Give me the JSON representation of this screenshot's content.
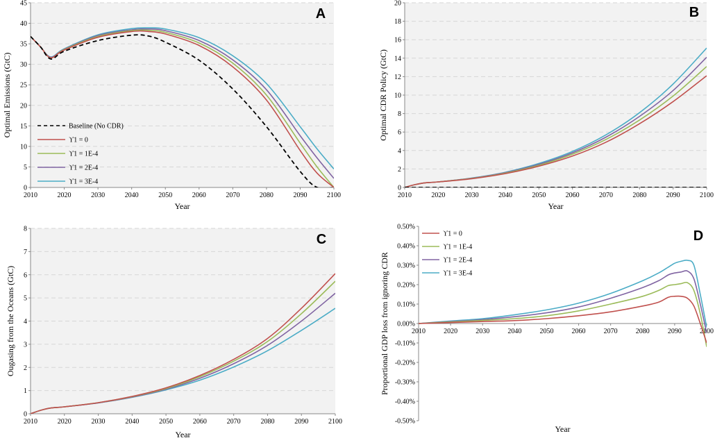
{
  "chart_data": [
    {
      "panel": "A",
      "type": "line",
      "title": "",
      "xlabel": "Year",
      "ylabel": "Optimal Emissions (GtC)",
      "xlim": [
        2010,
        2100
      ],
      "ylim": [
        0,
        45
      ],
      "xticks": [
        2010,
        2020,
        2030,
        2040,
        2050,
        2060,
        2070,
        2080,
        2090,
        2100
      ],
      "yticks": [
        0,
        5,
        10,
        15,
        20,
        25,
        30,
        35,
        40,
        45
      ],
      "yticklabels": [
        "0",
        "5",
        "10",
        "15",
        "20",
        "25",
        "30",
        "35",
        "40",
        "45"
      ],
      "grid": true,
      "legend_position": "lower-left",
      "x": [
        2010,
        2013,
        2016,
        2020,
        2030,
        2040,
        2045,
        2050,
        2060,
        2070,
        2080,
        2090,
        2095,
        2100
      ],
      "series": [
        {
          "name": "Baseline (No CDR)",
          "color": "#000000",
          "dash": true,
          "values": [
            36.8,
            34.2,
            31.3,
            33.2,
            35.8,
            37.1,
            36.9,
            35.4,
            31.0,
            24.0,
            14.8,
            3.9,
            0,
            0
          ]
        },
        {
          "name": "ϒ1 = 0",
          "color": "#c0504d",
          "dash": false,
          "values": [
            36.8,
            34.2,
            31.6,
            33.5,
            36.6,
            38.0,
            38.0,
            37.4,
            34.6,
            29.4,
            21.3,
            9.0,
            3.5,
            0
          ]
        },
        {
          "name": "ϒ1 = 1E-4",
          "color": "#9bbb59",
          "dash": false,
          "values": [
            36.8,
            34.2,
            31.6,
            33.6,
            36.8,
            38.2,
            38.3,
            37.8,
            35.2,
            30.3,
            22.5,
            10.8,
            5.0,
            0
          ]
        },
        {
          "name": "ϒ1 = 2E-4",
          "color": "#8064a2",
          "dash": false,
          "values": [
            36.8,
            34.2,
            31.7,
            33.7,
            37.0,
            38.4,
            38.6,
            38.2,
            35.8,
            31.1,
            23.8,
            12.6,
            7.2,
            2.2
          ]
        },
        {
          "name": "ϒ1 = 3E-4",
          "color": "#4bacc6",
          "dash": false,
          "values": [
            36.8,
            34.2,
            31.8,
            33.8,
            37.2,
            38.7,
            38.9,
            38.6,
            36.5,
            32.1,
            25.3,
            14.8,
            9.4,
            4.5
          ]
        }
      ]
    },
    {
      "panel": "B",
      "type": "line",
      "title": "",
      "xlabel": "Year",
      "ylabel": "Optimal CDR Policy (GtC)",
      "xlim": [
        2010,
        2100
      ],
      "ylim": [
        0,
        20
      ],
      "xticks": [
        2010,
        2020,
        2030,
        2040,
        2050,
        2060,
        2070,
        2080,
        2090,
        2100
      ],
      "yticks": [
        0,
        2,
        4,
        6,
        8,
        10,
        12,
        14,
        16,
        18,
        20
      ],
      "yticklabels": [
        "0",
        "2",
        "4",
        "6",
        "8",
        "10",
        "12",
        "14",
        "16",
        "18",
        "20"
      ],
      "grid": true,
      "x": [
        2010,
        2013,
        2016,
        2020,
        2030,
        2040,
        2050,
        2060,
        2070,
        2080,
        2090,
        2100
      ],
      "series": [
        {
          "name": "Baseline (No CDR)",
          "color": "#000000",
          "dash": true,
          "values": [
            0,
            0,
            0,
            0,
            0,
            0,
            0,
            0,
            0,
            0,
            0,
            0
          ]
        },
        {
          "name": "ϒ1 = 0",
          "color": "#c0504d",
          "dash": false,
          "values": [
            0,
            0.3,
            0.5,
            0.6,
            0.95,
            1.5,
            2.3,
            3.4,
            4.9,
            6.9,
            9.3,
            12.1
          ]
        },
        {
          "name": "ϒ1 = 1E-4",
          "color": "#9bbb59",
          "dash": false,
          "values": [
            0,
            0.3,
            0.5,
            0.6,
            0.97,
            1.55,
            2.4,
            3.6,
            5.2,
            7.3,
            9.9,
            13.1
          ]
        },
        {
          "name": "ϒ1 = 2E-4",
          "color": "#8064a2",
          "dash": false,
          "values": [
            0,
            0.3,
            0.5,
            0.6,
            1.0,
            1.6,
            2.5,
            3.75,
            5.45,
            7.7,
            10.5,
            14.1
          ]
        },
        {
          "name": "ϒ1 = 3E-4",
          "color": "#4bacc6",
          "dash": false,
          "values": [
            0,
            0.3,
            0.5,
            0.6,
            1.02,
            1.65,
            2.6,
            3.9,
            5.7,
            8.1,
            11.2,
            15.1
          ]
        }
      ]
    },
    {
      "panel": "C",
      "type": "line",
      "title": "",
      "xlabel": "Year",
      "ylabel": "Ougasing from the Oceans (GtC)",
      "xlim": [
        2010,
        2100
      ],
      "ylim": [
        0,
        8
      ],
      "xticks": [
        2010,
        2020,
        2030,
        2040,
        2050,
        2060,
        2070,
        2080,
        2090,
        2100
      ],
      "yticks": [
        0,
        1,
        2,
        3,
        4,
        5,
        6,
        7,
        8
      ],
      "yticklabels": [
        "0",
        "1",
        "2",
        "3",
        "4",
        "5",
        "6",
        "7",
        "8"
      ],
      "grid": true,
      "x": [
        2010,
        2013,
        2016,
        2020,
        2030,
        2040,
        2050,
        2060,
        2070,
        2080,
        2090,
        2100
      ],
      "series": [
        {
          "name": "ϒ1 = 0",
          "color": "#c0504d",
          "dash": false,
          "values": [
            0,
            0.15,
            0.25,
            0.3,
            0.48,
            0.75,
            1.12,
            1.65,
            2.35,
            3.25,
            4.55,
            6.05
          ]
        },
        {
          "name": "ϒ1 = 1E-4",
          "color": "#9bbb59",
          "dash": false,
          "values": [
            0,
            0.15,
            0.25,
            0.3,
            0.48,
            0.74,
            1.09,
            1.6,
            2.27,
            3.12,
            4.32,
            5.72
          ]
        },
        {
          "name": "ϒ1 = 2E-4",
          "color": "#8064a2",
          "dash": false,
          "values": [
            0,
            0.15,
            0.25,
            0.3,
            0.47,
            0.72,
            1.06,
            1.53,
            2.16,
            2.95,
            4.0,
            5.2
          ]
        },
        {
          "name": "ϒ1 = 3E-4",
          "color": "#4bacc6",
          "dash": false,
          "values": [
            0,
            0.15,
            0.25,
            0.3,
            0.47,
            0.71,
            1.03,
            1.45,
            2.02,
            2.72,
            3.6,
            4.55
          ]
        }
      ]
    },
    {
      "panel": "D",
      "type": "line",
      "title": "",
      "xlabel": "Year",
      "ylabel": "Proportional GDP loss from ignoring CDR",
      "xlim": [
        2010,
        2100
      ],
      "ylim": [
        -0.5,
        0.5
      ],
      "xticks": [
        2010,
        2020,
        2030,
        2040,
        2050,
        2060,
        2070,
        2080,
        2090,
        2100
      ],
      "yticks": [
        -0.5,
        -0.4,
        -0.3,
        -0.2,
        -0.1,
        0,
        0.1,
        0.2,
        0.3,
        0.4,
        0.5
      ],
      "yticklabels": [
        "-0.50%",
        "-0.40%",
        "-0.30%",
        "-0.20%",
        "-0.10%",
        "0.00%",
        "0.10%",
        "0.20%",
        "0.30%",
        "0.40%",
        "0.50%"
      ],
      "grid": false,
      "legend_position": "top-left",
      "x": [
        2010,
        2020,
        2030,
        2040,
        2050,
        2060,
        2070,
        2080,
        2085,
        2088,
        2090,
        2092,
        2094,
        2096,
        2098,
        2100
      ],
      "series": [
        {
          "name": "ϒ1 = 0",
          "color": "#c0504d",
          "dash": false,
          "values": [
            0,
            0.005,
            0.01,
            0.015,
            0.025,
            0.04,
            0.06,
            0.09,
            0.11,
            0.135,
            0.14,
            0.14,
            0.13,
            0.09,
            0.0,
            -0.1
          ]
        },
        {
          "name": "ϒ1 = 1E-4",
          "color": "#9bbb59",
          "dash": false,
          "values": [
            0,
            0.008,
            0.016,
            0.025,
            0.04,
            0.065,
            0.1,
            0.14,
            0.17,
            0.195,
            0.2,
            0.205,
            0.21,
            0.17,
            0.05,
            -0.12
          ]
        },
        {
          "name": "ϒ1 = 2E-4",
          "color": "#8064a2",
          "dash": false,
          "values": [
            0,
            0.01,
            0.02,
            0.035,
            0.055,
            0.085,
            0.13,
            0.185,
            0.22,
            0.25,
            0.26,
            0.265,
            0.27,
            0.23,
            0.1,
            -0.05
          ]
        },
        {
          "name": "ϒ1 = 3E-4",
          "color": "#4bacc6",
          "dash": false,
          "values": [
            0,
            0.013,
            0.025,
            0.045,
            0.07,
            0.105,
            0.155,
            0.22,
            0.26,
            0.29,
            0.31,
            0.32,
            0.325,
            0.3,
            0.15,
            -0.02
          ]
        }
      ]
    }
  ],
  "legend_entries": [
    "Baseline (No CDR)",
    "ϒ1 = 0",
    "ϒ1 = 1E-4",
    "ϒ1 = 2E-4",
    "ϒ1 = 3E-4"
  ]
}
